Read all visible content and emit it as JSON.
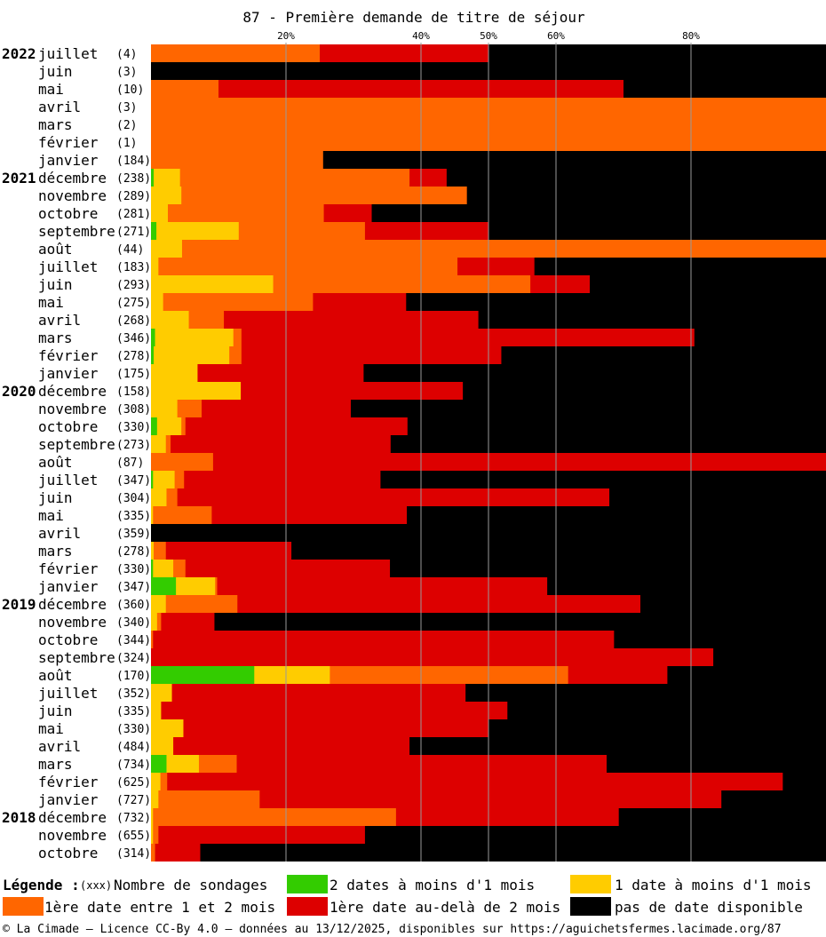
{
  "chart_data": {
    "type": "bar",
    "title": "87 - Première demande de titre de séjour",
    "x_ticks": [
      "20%",
      "40%",
      "50%",
      "60%",
      "80%"
    ],
    "x_tick_values": [
      20,
      40,
      50,
      60,
      80
    ],
    "xlim": [
      0,
      100
    ],
    "series": [
      {
        "key": "g",
        "name": "2 dates à moins d'1 mois",
        "color": "#33cc00"
      },
      {
        "key": "y",
        "name": "1 date à moins d'1 mois",
        "color": "#ffcc00"
      },
      {
        "key": "o",
        "name": "1ère date entre 1 et 2 mois",
        "color": "#ff6600"
      },
      {
        "key": "r",
        "name": "1ère date au-delà de 2 mois",
        "color": "#dd0000"
      },
      {
        "key": "b",
        "name": "pas de date disponible",
        "color": "#000000"
      }
    ],
    "rows": [
      {
        "year": "2022",
        "month": "juillet",
        "count": "(4)",
        "g": 0,
        "y": 0,
        "o": 25,
        "r": 25,
        "b": 50
      },
      {
        "year": "",
        "month": "juin",
        "count": "(3)",
        "g": 0,
        "y": 0,
        "o": 0,
        "r": 0,
        "b": 100
      },
      {
        "year": "",
        "month": "mai",
        "count": "(10)",
        "g": 0,
        "y": 0,
        "o": 10,
        "r": 60,
        "b": 30
      },
      {
        "year": "",
        "month": "avril",
        "count": "(3)",
        "g": 0,
        "y": 0,
        "o": 100,
        "r": 0,
        "b": 0
      },
      {
        "year": "",
        "month": "mars",
        "count": "(2)",
        "g": 0,
        "y": 0,
        "o": 100,
        "r": 0,
        "b": 0
      },
      {
        "year": "",
        "month": "février",
        "count": "(1)",
        "g": 0,
        "y": 0,
        "o": 100,
        "r": 0,
        "b": 0
      },
      {
        "year": "",
        "month": "janvier",
        "count": "(184)",
        "g": 0,
        "y": 0,
        "o": 25.5,
        "r": 0,
        "b": 74.5
      },
      {
        "year": "2021",
        "month": "décembre",
        "count": "(238)",
        "g": 0.4,
        "y": 3.9,
        "o": 34,
        "r": 5.5,
        "b": 56.2
      },
      {
        "year": "",
        "month": "novembre",
        "count": "(289)",
        "g": 0,
        "y": 4.5,
        "o": 42.3,
        "r": 0,
        "b": 53.2
      },
      {
        "year": "",
        "month": "octobre",
        "count": "(281)",
        "g": 0,
        "y": 2.5,
        "o": 23.1,
        "r": 7.1,
        "b": 67.3
      },
      {
        "year": "",
        "month": "septembre",
        "count": "(271)",
        "g": 0.8,
        "y": 12.2,
        "o": 18.7,
        "r": 18.3,
        "b": 50
      },
      {
        "year": "",
        "month": "août",
        "count": "(44)",
        "g": 0,
        "y": 4.6,
        "o": 95.4,
        "r": 0,
        "b": 0
      },
      {
        "year": "",
        "month": "juillet",
        "count": "(183)",
        "g": 0,
        "y": 1.1,
        "o": 44.3,
        "r": 11.4,
        "b": 43.2
      },
      {
        "year": "",
        "month": "juin",
        "count": "(293)",
        "g": 0,
        "y": 18.1,
        "o": 38.1,
        "r": 8.8,
        "b": 35
      },
      {
        "year": "",
        "month": "mai",
        "count": "(275)",
        "g": 0,
        "y": 1.8,
        "o": 22.2,
        "r": 13.8,
        "b": 62.2
      },
      {
        "year": "",
        "month": "avril",
        "count": "(268)",
        "g": 0,
        "y": 5.6,
        "o": 5.2,
        "r": 37.7,
        "b": 51.5
      },
      {
        "year": "",
        "month": "mars",
        "count": "(346)",
        "g": 0.6,
        "y": 11.6,
        "o": 1.2,
        "r": 67.1,
        "b": 19.5
      },
      {
        "year": "",
        "month": "février",
        "count": "(278)",
        "g": 0.4,
        "y": 11.2,
        "o": 1.8,
        "r": 38.5,
        "b": 48.1
      },
      {
        "year": "",
        "month": "janvier",
        "count": "(175)",
        "g": 0,
        "y": 6.9,
        "o": 0,
        "r": 24.6,
        "b": 68.5
      },
      {
        "year": "2020",
        "month": "décembre",
        "count": "(158)",
        "g": 0,
        "y": 13.3,
        "o": 0,
        "r": 32.9,
        "b": 53.8
      },
      {
        "year": "",
        "month": "novembre",
        "count": "(308)",
        "g": 0,
        "y": 3.9,
        "o": 3.6,
        "r": 22.1,
        "b": 70.4
      },
      {
        "year": "",
        "month": "octobre",
        "count": "(330)",
        "g": 0.9,
        "y": 3.6,
        "o": 0.6,
        "r": 32.9,
        "b": 62
      },
      {
        "year": "",
        "month": "septembre",
        "count": "(273)",
        "g": 0,
        "y": 2.2,
        "o": 0.7,
        "r": 32.6,
        "b": 64.5
      },
      {
        "year": "",
        "month": "août",
        "count": "(87)",
        "g": 0,
        "y": 0,
        "o": 9.2,
        "r": 90.8,
        "b": 0
      },
      {
        "year": "",
        "month": "juillet",
        "count": "(347)",
        "g": 0.3,
        "y": 3.2,
        "o": 1.4,
        "r": 29.1,
        "b": 66
      },
      {
        "year": "",
        "month": "juin",
        "count": "(304)",
        "g": 0,
        "y": 2.3,
        "o": 1.6,
        "r": 64,
        "b": 32.1
      },
      {
        "year": "",
        "month": "mai",
        "count": "(335)",
        "g": 0,
        "y": 0.3,
        "o": 8.7,
        "r": 28.9,
        "b": 62.1
      },
      {
        "year": "",
        "month": "avril",
        "count": "(359)",
        "g": 0,
        "y": 0,
        "o": 0,
        "r": 0,
        "b": 100
      },
      {
        "year": "",
        "month": "mars",
        "count": "(278)",
        "g": 0,
        "y": 0.4,
        "o": 1.8,
        "r": 18.6,
        "b": 79.2
      },
      {
        "year": "",
        "month": "février",
        "count": "(330)",
        "g": 0.3,
        "y": 3,
        "o": 1.8,
        "r": 30.3,
        "b": 64.6
      },
      {
        "year": "",
        "month": "janvier",
        "count": "(347)",
        "g": 3.7,
        "y": 5.8,
        "o": 0.3,
        "r": 48.9,
        "b": 41.3
      },
      {
        "year": "2019",
        "month": "décembre",
        "count": "(360)",
        "g": 0,
        "y": 2.2,
        "o": 10.6,
        "r": 59.7,
        "b": 27.5
      },
      {
        "year": "",
        "month": "novembre",
        "count": "(340)",
        "g": 0,
        "y": 0.9,
        "o": 0.6,
        "r": 7.9,
        "b": 90.6
      },
      {
        "year": "",
        "month": "octobre",
        "count": "(344)",
        "g": 0,
        "y": 0,
        "o": 0.3,
        "r": 68.3,
        "b": 31.4
      },
      {
        "year": "",
        "month": "septembre",
        "count": "(324)",
        "g": 0,
        "y": 0,
        "o": 0,
        "r": 83.3,
        "b": 16.7
      },
      {
        "year": "",
        "month": "août",
        "count": "(170)",
        "g": 15.3,
        "y": 11.2,
        "o": 35.3,
        "r": 14.7,
        "b": 23.5
      },
      {
        "year": "",
        "month": "juillet",
        "count": "(352)",
        "g": 0,
        "y": 3.1,
        "o": 0,
        "r": 43.5,
        "b": 53.4
      },
      {
        "year": "",
        "month": "juin",
        "count": "(335)",
        "g": 0,
        "y": 1.5,
        "o": 0,
        "r": 51.3,
        "b": 47.2
      },
      {
        "year": "",
        "month": "mai",
        "count": "(330)",
        "g": 0,
        "y": 4.8,
        "o": 0,
        "r": 45.2,
        "b": 50
      },
      {
        "year": "",
        "month": "avril",
        "count": "(484)",
        "g": 0,
        "y": 3.3,
        "o": 0,
        "r": 35,
        "b": 61.7
      },
      {
        "year": "",
        "month": "mars",
        "count": "(734)",
        "g": 2.3,
        "y": 4.8,
        "o": 5.6,
        "r": 54.8,
        "b": 32.5
      },
      {
        "year": "",
        "month": "février",
        "count": "(625)",
        "g": 0,
        "y": 1.4,
        "o": 1,
        "r": 91.2,
        "b": 6.4
      },
      {
        "year": "",
        "month": "janvier",
        "count": "(727)",
        "g": 0,
        "y": 1.1,
        "o": 15,
        "r": 68.4,
        "b": 15.5
      },
      {
        "year": "2018",
        "month": "décembre",
        "count": "(732)",
        "g": 0,
        "y": 0.3,
        "o": 36,
        "r": 33,
        "b": 30.7
      },
      {
        "year": "",
        "month": "novembre",
        "count": "(655)",
        "g": 0,
        "y": 0.3,
        "o": 0.8,
        "r": 30.6,
        "b": 68.3
      },
      {
        "year": "",
        "month": "octobre",
        "count": "(314)",
        "g": 0,
        "y": 0,
        "o": 0.6,
        "r": 6.7,
        "b": 92.7
      }
    ]
  },
  "legend": {
    "label": "Légende :",
    "count_hint": "(xxx)",
    "count_label": "Nombre de sondages"
  },
  "footer": "© La Cimade — Licence CC-By 4.0 — données au 13/12/2025, disponibles sur https://aguichetsfermes.lacimade.org/87"
}
